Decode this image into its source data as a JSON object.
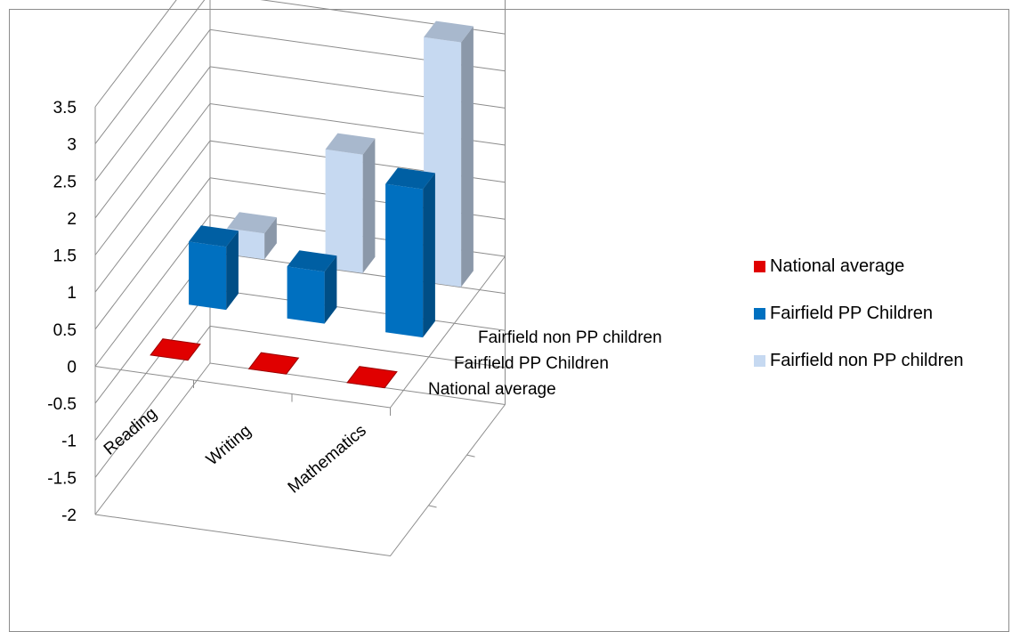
{
  "chart_data": {
    "type": "bar",
    "title": "",
    "xlabel": "",
    "ylabel": "",
    "ylim": [
      -2,
      3.5
    ],
    "y_ticks": [
      "3.5",
      "3",
      "2.5",
      "2",
      "1.5",
      "1",
      "0.5",
      "0",
      "-0.5",
      "-1",
      "-1.5",
      "-2"
    ],
    "categories": [
      "Reading",
      "Writing",
      "Mathematics"
    ],
    "series": [
      {
        "name": "National average",
        "values": [
          0,
          0,
          0
        ],
        "color": "#e00000"
      },
      {
        "name": "Fairfield PP Children",
        "values": [
          0.85,
          0.7,
          2.0
        ],
        "color": "#0070c0"
      },
      {
        "name": "Fairfield non PP children",
        "values": [
          0.35,
          1.6,
          3.3
        ],
        "color": "#c6d9f1"
      }
    ],
    "depth_labels": [
      "Fairfield non PP children",
      "Fairfield PP Children",
      "National average"
    ],
    "legend_position": "right",
    "grid": true,
    "style": "3d-bar"
  }
}
